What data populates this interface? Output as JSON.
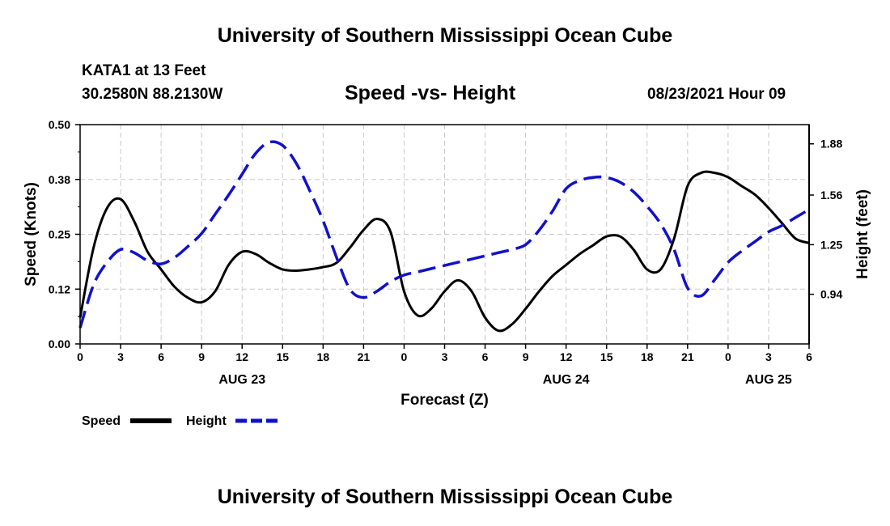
{
  "header": {
    "title": "University of Southern Mississippi Ocean Cube",
    "station": "KATA1 at 13 Feet",
    "coords": "30.2580N  88.2130W",
    "chart_title": "Speed -vs- Height",
    "run_time": "08/23/2021 Hour 09"
  },
  "footer": {
    "title": "University of Southern Mississippi Ocean Cube"
  },
  "legend": {
    "speed_label": "Speed",
    "height_label": "Height"
  },
  "colors": {
    "speed": "#000000",
    "height": "#1111cc",
    "grid": "#c8c8c8"
  },
  "chart_data": {
    "type": "line",
    "title": "Speed -vs- Height",
    "xlabel": "Forecast (Z)",
    "ylabel_left": "Speed (Knots)",
    "ylabel_right": "Height (feet)",
    "x_range": [
      0,
      54
    ],
    "x_ticks": [
      0,
      3,
      6,
      9,
      12,
      15,
      18,
      21,
      24,
      27,
      30,
      33,
      36,
      39,
      42,
      45,
      48,
      51,
      54
    ],
    "x_tick_labels": [
      "0",
      "3",
      "6",
      "9",
      "12",
      "15",
      "18",
      "21",
      "0",
      "3",
      "6",
      "9",
      "12",
      "15",
      "18",
      "21",
      "0",
      "3",
      "6"
    ],
    "date_labels": [
      {
        "x": 12,
        "label": "AUG 23"
      },
      {
        "x": 36,
        "label": "AUG 24"
      },
      {
        "x": 51,
        "label": "AUG 25"
      }
    ],
    "y_left": {
      "range": [
        0,
        0.5
      ],
      "ticks": [
        0,
        0.125,
        0.25,
        0.375,
        0.5
      ],
      "tick_labels": [
        "0.00",
        "0.12",
        "0.25",
        "0.38",
        "0.50"
      ]
    },
    "y_right": {
      "range": [
        0.63,
        2.0
      ],
      "ticks": [
        0.94,
        1.25,
        1.56,
        1.88
      ],
      "tick_labels": [
        "0.94",
        "1.25",
        "1.56",
        "1.88"
      ]
    },
    "grid": true,
    "legend_position": "bottom-left",
    "series": [
      {
        "name": "Speed",
        "axis": "left",
        "style": "solid",
        "x": [
          0,
          1,
          2,
          3,
          4,
          5,
          6,
          7,
          8,
          9,
          10,
          11,
          12,
          13,
          14,
          15,
          16,
          17,
          18,
          19,
          20,
          21,
          22,
          23,
          24,
          25,
          26,
          27,
          28,
          29,
          30,
          31,
          32,
          33,
          34,
          35,
          36,
          37,
          38,
          39,
          40,
          41,
          42,
          43,
          44,
          45,
          46,
          47,
          48,
          49,
          50,
          51,
          52,
          53,
          54
        ],
        "y": [
          0.06,
          0.22,
          0.31,
          0.33,
          0.28,
          0.21,
          0.17,
          0.13,
          0.105,
          0.095,
          0.12,
          0.18,
          0.21,
          0.205,
          0.185,
          0.17,
          0.167,
          0.17,
          0.175,
          0.185,
          0.22,
          0.26,
          0.285,
          0.255,
          0.12,
          0.065,
          0.08,
          0.12,
          0.145,
          0.12,
          0.06,
          0.03,
          0.045,
          0.08,
          0.12,
          0.155,
          0.18,
          0.205,
          0.225,
          0.245,
          0.245,
          0.215,
          0.17,
          0.17,
          0.24,
          0.36,
          0.39,
          0.39,
          0.38,
          0.36,
          0.34,
          0.31,
          0.275,
          0.24,
          0.23
        ]
      },
      {
        "name": "Height",
        "axis": "right",
        "style": "dashed",
        "x": [
          0,
          1,
          2,
          3,
          4,
          5,
          6,
          7,
          8,
          9,
          10,
          11,
          12,
          13,
          14,
          15,
          16,
          17,
          18,
          19,
          20,
          21,
          22,
          23,
          24,
          25,
          26,
          27,
          28,
          29,
          30,
          31,
          32,
          33,
          34,
          35,
          36,
          37,
          38,
          39,
          40,
          41,
          42,
          43,
          44,
          45,
          46,
          47,
          48,
          49,
          50,
          51,
          52,
          53,
          54
        ],
        "y": [
          0.73,
          1.0,
          1.14,
          1.22,
          1.2,
          1.15,
          1.13,
          1.17,
          1.24,
          1.32,
          1.44,
          1.56,
          1.69,
          1.82,
          1.89,
          1.87,
          1.76,
          1.59,
          1.4,
          1.17,
          0.97,
          0.92,
          0.96,
          1.02,
          1.06,
          1.08,
          1.1,
          1.12,
          1.14,
          1.16,
          1.18,
          1.2,
          1.22,
          1.25,
          1.34,
          1.46,
          1.6,
          1.65,
          1.67,
          1.67,
          1.64,
          1.58,
          1.49,
          1.38,
          1.22,
          0.98,
          0.93,
          1.03,
          1.14,
          1.21,
          1.27,
          1.33,
          1.37,
          1.42,
          1.47
        ]
      }
    ]
  }
}
